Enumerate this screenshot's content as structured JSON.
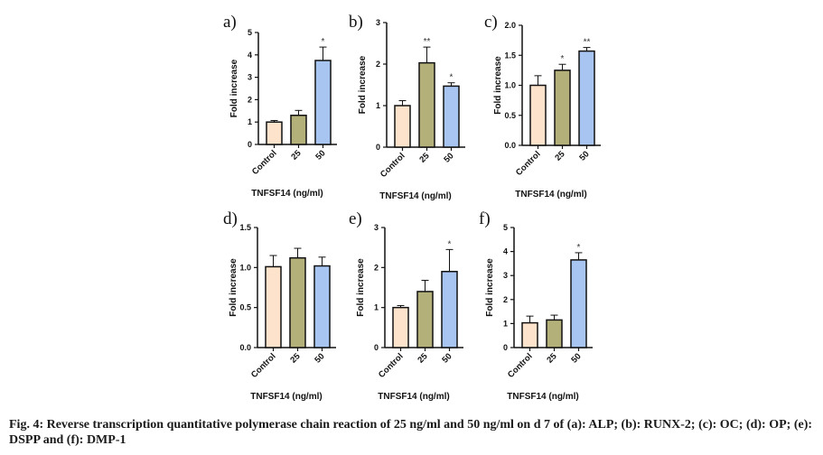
{
  "caption": "Fig. 4: Reverse transcription quantitative polymerase chain reaction of 25 ng/ml and 50 ng/ml on d 7 of (a): ALP; (b): RUNX-2; (c): OC; (d): OP; (e): DSPP and (f): DMP-1",
  "colors": {
    "control": "#fde3cc",
    "dose25": "#b3b07a",
    "dose50": "#a8c4f1",
    "axis": "#111111"
  },
  "chart_data": [
    {
      "type": "bar",
      "panel": "a)",
      "categories": [
        "Control",
        "25",
        "50"
      ],
      "values": [
        1.0,
        1.3,
        3.75
      ],
      "errors": [
        0.07,
        0.22,
        0.6
      ],
      "significance": [
        "",
        "",
        "*"
      ],
      "ylim": [
        0,
        5
      ],
      "yticks": [
        0,
        1,
        2,
        3,
        4,
        5
      ],
      "ylabel": "Fold increase",
      "xlabel": "TNFSF14 (ng/ml)"
    },
    {
      "type": "bar",
      "panel": "b)",
      "categories": [
        "Control",
        "25",
        "50"
      ],
      "values": [
        1.0,
        2.03,
        1.47
      ],
      "errors": [
        0.12,
        0.38,
        0.08
      ],
      "significance": [
        "",
        "**",
        "*"
      ],
      "ylim": [
        0,
        3
      ],
      "yticks": [
        0,
        1,
        2,
        3
      ],
      "ylabel": "Fold increase",
      "xlabel": "TNFSF14 (ng/ml)"
    },
    {
      "type": "bar",
      "panel": "c)",
      "categories": [
        "Control",
        "25",
        "50"
      ],
      "values": [
        1.0,
        1.25,
        1.57
      ],
      "errors": [
        0.16,
        0.1,
        0.06
      ],
      "significance": [
        "",
        "*",
        "**"
      ],
      "ylim": [
        0,
        2.0
      ],
      "yticks": [
        0,
        0.5,
        1.0,
        1.5,
        2.0
      ],
      "ytickLabels": [
        "0.0",
        "0.5",
        "1.0",
        "1.5",
        "2.0"
      ],
      "ylabel": "Fold increase",
      "xlabel": "TNFSF14 (ng/ml)"
    },
    {
      "type": "bar",
      "panel": "d)",
      "categories": [
        "Control",
        "25",
        "50"
      ],
      "values": [
        1.01,
        1.12,
        1.02
      ],
      "errors": [
        0.14,
        0.12,
        0.11
      ],
      "significance": [
        "",
        "",
        ""
      ],
      "ylim": [
        0,
        1.5
      ],
      "yticks": [
        0,
        0.5,
        1.0,
        1.5
      ],
      "ytickLabels": [
        "0.0",
        "0.5",
        "1.0",
        "1.5"
      ],
      "ylabel": "Fold increase",
      "xlabel": "TNFSF14 (ng/ml)"
    },
    {
      "type": "bar",
      "panel": "e)",
      "categories": [
        "Control",
        "25",
        "50"
      ],
      "values": [
        1.0,
        1.4,
        1.9
      ],
      "errors": [
        0.05,
        0.28,
        0.55
      ],
      "significance": [
        "",
        "",
        "*"
      ],
      "ylim": [
        0,
        3
      ],
      "yticks": [
        0,
        1,
        2,
        3
      ],
      "ylabel": "Fold increase",
      "xlabel": "TNFSF14 (ng/ml)"
    },
    {
      "type": "bar",
      "panel": "f)",
      "categories": [
        "Control",
        "25",
        "50"
      ],
      "values": [
        1.03,
        1.15,
        3.65
      ],
      "errors": [
        0.28,
        0.2,
        0.3
      ],
      "significance": [
        "",
        "",
        "*"
      ],
      "ylim": [
        0,
        5
      ],
      "yticks": [
        0,
        1,
        2,
        3,
        4,
        5
      ],
      "ylabel": "Fold increase",
      "xlabel": "TNFSF14 (ng/ml)"
    }
  ]
}
